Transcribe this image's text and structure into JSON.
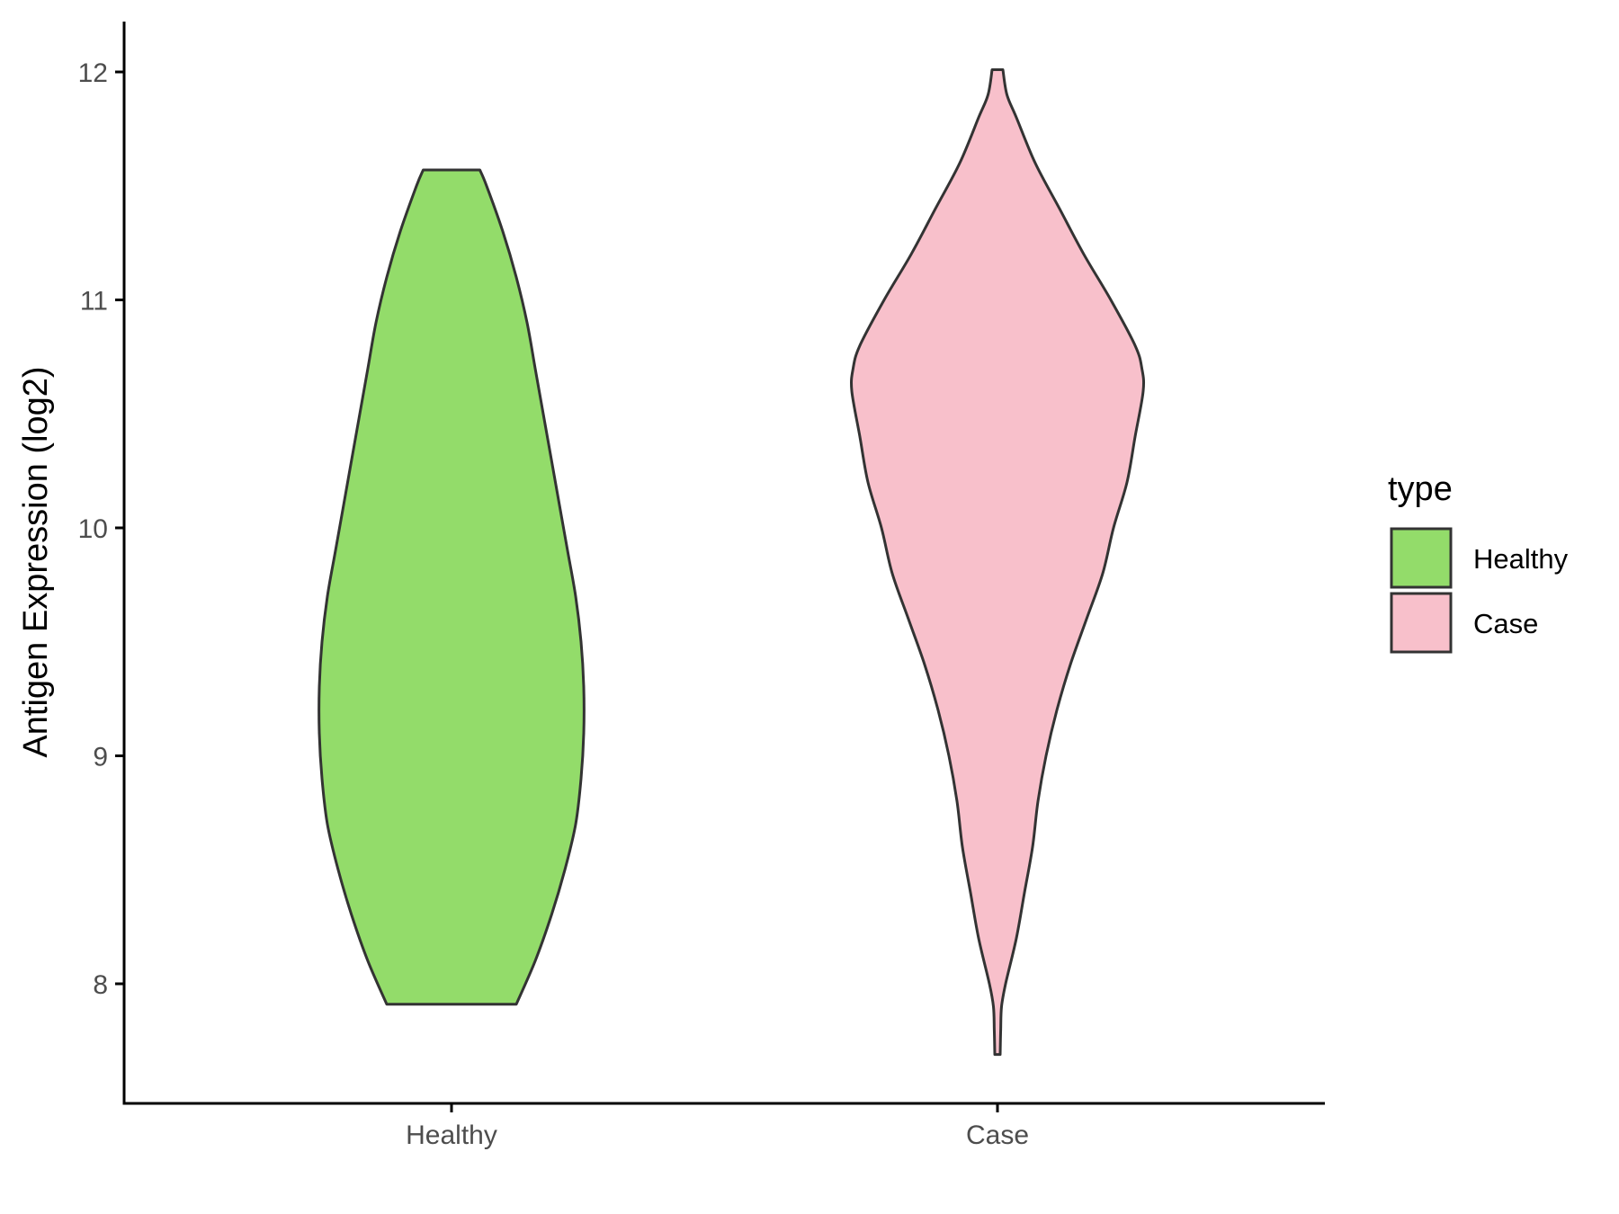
{
  "chart_data": {
    "type": "violin",
    "title": "",
    "xlabel": "",
    "ylabel": "Antigen Expression (log2)",
    "categories": [
      "Healthy",
      "Case"
    ],
    "ylim": [
      7.5,
      12.2
    ],
    "yticks": [
      8,
      9,
      10,
      11,
      12
    ],
    "grid": false,
    "legend": {
      "title": "type",
      "position": "right",
      "entries": [
        {
          "label": "Healthy",
          "color": "#93dc6a"
        },
        {
          "label": "Case",
          "color": "#f8c0cb"
        }
      ]
    },
    "series": [
      {
        "category": "Healthy",
        "color": "#93dc6a",
        "min": 7.91,
        "max": 11.57,
        "density_profile": [
          [
            7.91,
            0.24
          ],
          [
            8.1,
            0.31
          ],
          [
            8.3,
            0.37
          ],
          [
            8.5,
            0.42
          ],
          [
            8.7,
            0.46
          ],
          [
            8.9,
            0.48
          ],
          [
            9.1,
            0.49
          ],
          [
            9.3,
            0.49
          ],
          [
            9.5,
            0.48
          ],
          [
            9.7,
            0.46
          ],
          [
            9.9,
            0.43
          ],
          [
            10.1,
            0.4
          ],
          [
            10.3,
            0.37
          ],
          [
            10.5,
            0.34
          ],
          [
            10.7,
            0.31
          ],
          [
            10.9,
            0.28
          ],
          [
            11.1,
            0.24
          ],
          [
            11.3,
            0.19
          ],
          [
            11.5,
            0.13
          ],
          [
            11.57,
            0.105
          ]
        ]
      },
      {
        "category": "Case",
        "color": "#f8c0cb",
        "min": 7.69,
        "max": 12.01,
        "density_profile": [
          [
            7.69,
            0.01
          ],
          [
            7.8,
            0.012
          ],
          [
            7.9,
            0.015
          ],
          [
            8.0,
            0.03
          ],
          [
            8.2,
            0.07
          ],
          [
            8.4,
            0.1
          ],
          [
            8.6,
            0.13
          ],
          [
            8.8,
            0.15
          ],
          [
            9.0,
            0.18
          ],
          [
            9.2,
            0.22
          ],
          [
            9.4,
            0.27
          ],
          [
            9.6,
            0.33
          ],
          [
            9.8,
            0.39
          ],
          [
            10.0,
            0.43
          ],
          [
            10.2,
            0.48
          ],
          [
            10.4,
            0.51
          ],
          [
            10.6,
            0.54
          ],
          [
            10.7,
            0.535
          ],
          [
            10.8,
            0.51
          ],
          [
            11.0,
            0.42
          ],
          [
            11.2,
            0.32
          ],
          [
            11.4,
            0.23
          ],
          [
            11.6,
            0.14
          ],
          [
            11.8,
            0.07
          ],
          [
            11.9,
            0.035
          ],
          [
            12.01,
            0.02
          ]
        ]
      }
    ]
  }
}
